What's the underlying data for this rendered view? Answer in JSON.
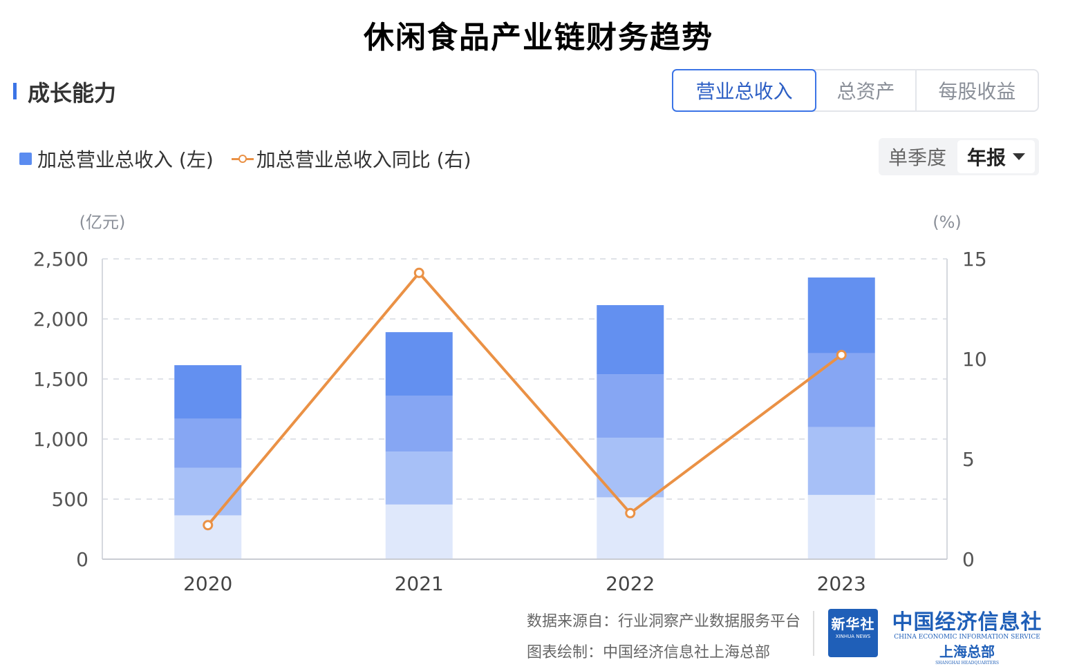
{
  "title": "休闲食品产业链财务趋势",
  "section": {
    "title": "成长能力"
  },
  "tabs": [
    {
      "label": "营业总收入",
      "active": true
    },
    {
      "label": "总资产",
      "active": false
    },
    {
      "label": "每股收益",
      "active": false
    }
  ],
  "legend": {
    "bar_label": "加总营业总收入 (左)",
    "line_label": "加总营业总收入同比 (右)"
  },
  "period_toggle": {
    "quarterly": "单季度",
    "annual": "年报"
  },
  "footer": {
    "source": "数据来源自：行业洞察产业数据服务平台",
    "credit": "图表绘制：中国经济信息社上海总部"
  },
  "logos": {
    "xinhua_cn": "新华社",
    "xinhua_en": "XINHUA NEWS",
    "cei_cn": "中国经济信息社",
    "cei_en": "CHINA ECONOMIC INFORMATION SERVICE",
    "cei_sub": "上海总部",
    "cei_sub_en": "SHANGHAI HEADQUARTERS"
  },
  "chart_data": {
    "type": "bar",
    "stacked": true,
    "categories": [
      "2020",
      "2021",
      "2022",
      "2023"
    ],
    "left_axis": {
      "unit": "(亿元)",
      "ylim": [
        0,
        2500
      ],
      "ticks": [
        0,
        500,
        1000,
        1500,
        2000,
        2500
      ],
      "tick_labels": [
        "0",
        "500",
        "1,000",
        "1,500",
        "2,000",
        "2,500"
      ]
    },
    "right_axis": {
      "unit": "(%)",
      "ylim": [
        0,
        15
      ],
      "ticks": [
        0,
        5,
        10,
        15
      ],
      "tick_labels": [
        "0",
        "5",
        "10",
        "15"
      ]
    },
    "series": [
      {
        "type": "bar",
        "axis": "left",
        "color": "#dfe8fb",
        "values": [
          365,
          455,
          515,
          535
        ]
      },
      {
        "type": "bar",
        "axis": "left",
        "color": "#a7c0f7",
        "values": [
          395,
          440,
          495,
          565
        ]
      },
      {
        "type": "bar",
        "axis": "left",
        "color": "#86a6f3",
        "values": [
          410,
          465,
          530,
          615
        ]
      },
      {
        "type": "bar",
        "axis": "left",
        "color": "#6390f0",
        "values": [
          445,
          530,
          575,
          630
        ]
      },
      {
        "type": "line",
        "axis": "right",
        "color": "#ea9145",
        "values": [
          1.7,
          14.3,
          2.3,
          10.2
        ]
      }
    ],
    "grid": true
  }
}
